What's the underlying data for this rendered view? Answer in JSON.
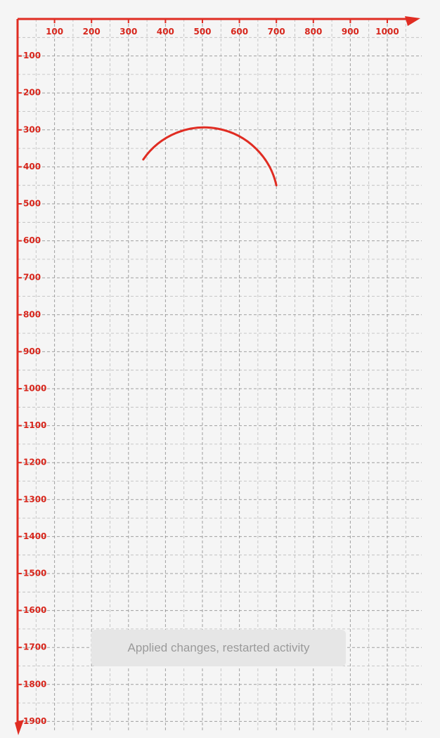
{
  "colors": {
    "background": "#f5f5f5",
    "grid": "#8a8a8a",
    "axis": "#e02c22",
    "tick_text": "#d7261c",
    "toast_background": "#e6e6e6",
    "toast_text": "#9a9a9a"
  },
  "chart_data": {
    "type": "line",
    "grid": true,
    "x_axis": {
      "ticks": [
        100,
        200,
        300,
        400,
        500,
        600,
        700,
        800,
        900,
        1000
      ],
      "labels": [
        "100",
        "200",
        "300",
        "400",
        "500",
        "600",
        "700",
        "800",
        "900",
        "1000"
      ]
    },
    "y_axis": {
      "ticks": [
        100,
        200,
        300,
        400,
        500,
        600,
        700,
        800,
        900,
        1000,
        1100,
        1200,
        1300,
        1400,
        1500,
        1600,
        1700,
        1800,
        1900
      ],
      "labels": [
        "100",
        "200",
        "300",
        "400",
        "500",
        "600",
        "700",
        "800",
        "900",
        "1000",
        "1100",
        "1200",
        "1300",
        "1400",
        "1500",
        "1600",
        "1700",
        "1800",
        "1900"
      ]
    },
    "arc": {
      "center": [
        500,
        500
      ],
      "radius": 200,
      "start": [
        340,
        380
      ],
      "end": [
        700,
        450
      ]
    }
  },
  "toast": {
    "message": "Applied changes, restarted activity"
  }
}
